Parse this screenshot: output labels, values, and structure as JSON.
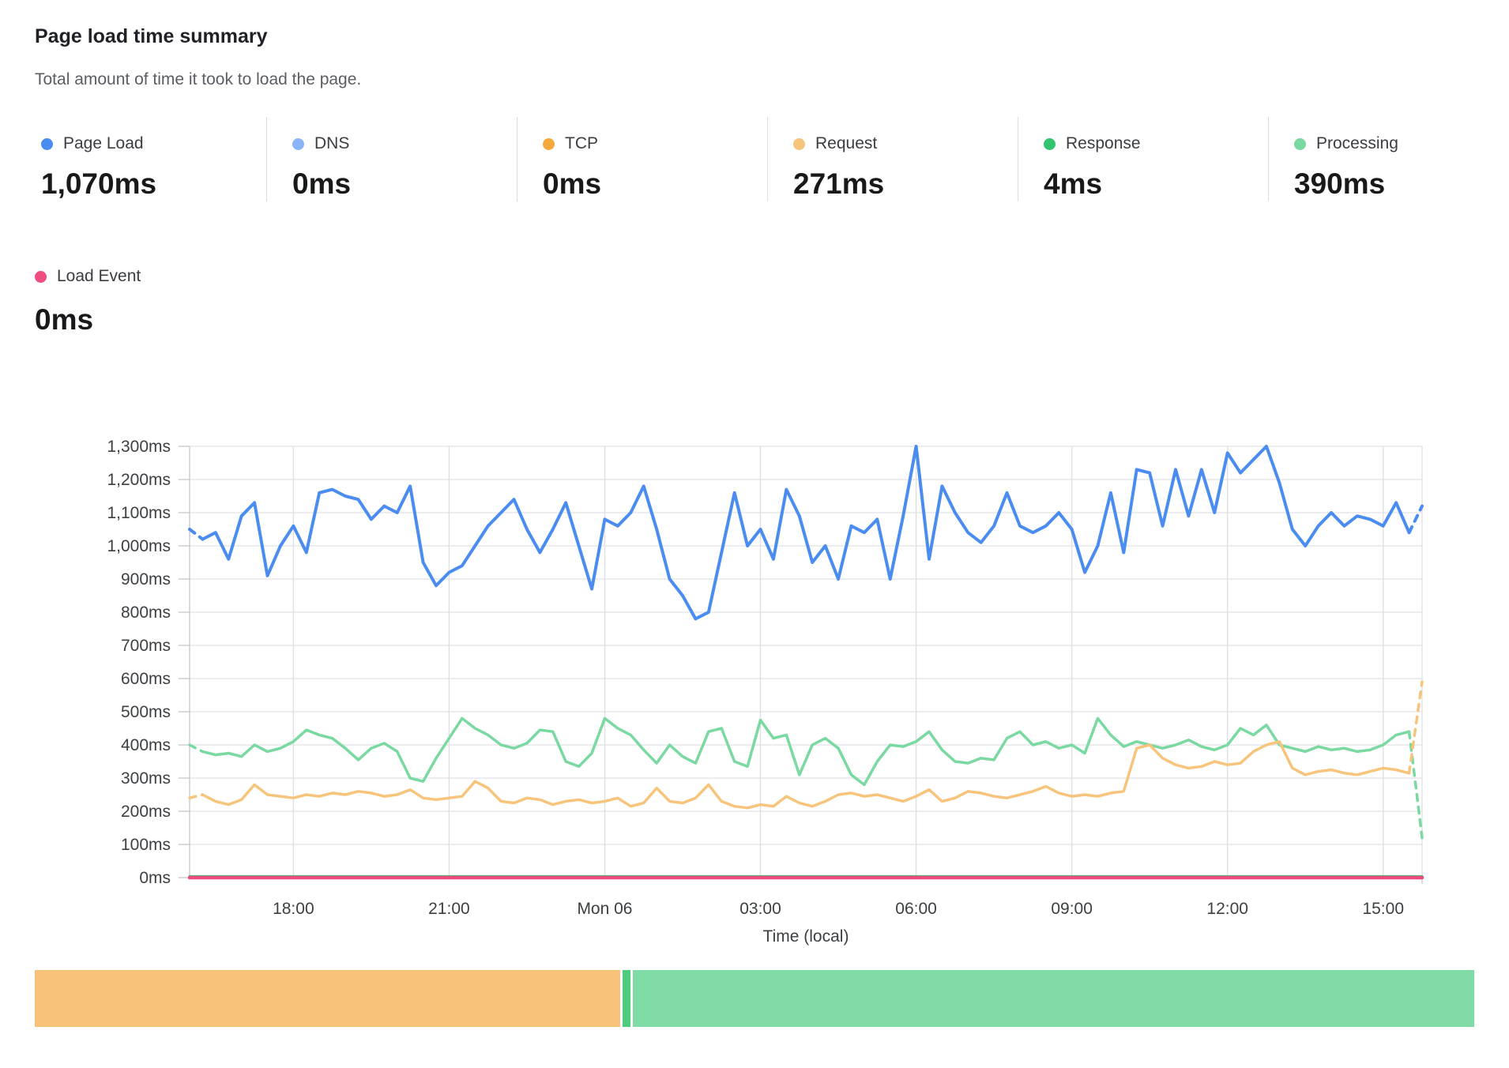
{
  "header": {
    "title": "Page load time summary",
    "subtitle": "Total amount of time it took to load the page."
  },
  "summary": [
    {
      "id": "page-load",
      "label": "Page Load",
      "value": "1,070ms",
      "color": "#4a8cf0"
    },
    {
      "id": "dns",
      "label": "DNS",
      "value": "0ms",
      "color": "#8ab4f8"
    },
    {
      "id": "tcp",
      "label": "TCP",
      "value": "0ms",
      "color": "#f5a93c"
    },
    {
      "id": "request",
      "label": "Request",
      "value": "271ms",
      "color": "#f7c47c"
    },
    {
      "id": "response",
      "label": "Response",
      "value": "4ms",
      "color": "#33c46f"
    },
    {
      "id": "processing",
      "label": "Processing",
      "value": "390ms",
      "color": "#79d9a1"
    }
  ],
  "summary_row2": {
    "id": "load-event",
    "label": "Load Event",
    "value": "0ms",
    "color": "#ee4d80"
  },
  "chart_data": {
    "type": "line",
    "xlabel": "Time (local)",
    "ylabel": "ms",
    "ylim": [
      0,
      1300
    ],
    "grid": true,
    "n_points": 96,
    "y_ticks": [
      {
        "v": 0,
        "label": "0ms"
      },
      {
        "v": 100,
        "label": "100ms"
      },
      {
        "v": 200,
        "label": "200ms"
      },
      {
        "v": 300,
        "label": "300ms"
      },
      {
        "v": 400,
        "label": "400ms"
      },
      {
        "v": 500,
        "label": "500ms"
      },
      {
        "v": 600,
        "label": "600ms"
      },
      {
        "v": 700,
        "label": "700ms"
      },
      {
        "v": 800,
        "label": "800ms"
      },
      {
        "v": 900,
        "label": "900ms"
      },
      {
        "v": 1000,
        "label": "1,000ms"
      },
      {
        "v": 1100,
        "label": "1,100ms"
      },
      {
        "v": 1200,
        "label": "1,200ms"
      },
      {
        "v": 1300,
        "label": "1,300ms"
      }
    ],
    "x_ticks": [
      {
        "i": 8,
        "label": "18:00"
      },
      {
        "i": 20,
        "label": "21:00"
      },
      {
        "i": 32,
        "label": "Mon 06"
      },
      {
        "i": 44,
        "label": "03:00"
      },
      {
        "i": 56,
        "label": "06:00"
      },
      {
        "i": 68,
        "label": "09:00"
      },
      {
        "i": 80,
        "label": "12:00"
      },
      {
        "i": 92,
        "label": "15:00"
      }
    ],
    "series": [
      {
        "name": "DNS",
        "color": "#8ab4f8",
        "width": 3,
        "const": 0
      },
      {
        "name": "TCP",
        "color": "#f5a93c",
        "width": 3,
        "const": 0
      },
      {
        "name": "Processing",
        "color": "#79d9a1",
        "width": 3.5,
        "edge_dash": true,
        "values": [
          400,
          380,
          370,
          375,
          365,
          400,
          380,
          390,
          410,
          445,
          430,
          420,
          390,
          355,
          390,
          405,
          380,
          300,
          290,
          360,
          420,
          480,
          450,
          430,
          400,
          390,
          405,
          445,
          440,
          350,
          335,
          375,
          480,
          450,
          430,
          385,
          345,
          400,
          365,
          345,
          440,
          450,
          350,
          335,
          475,
          420,
          430,
          310,
          400,
          420,
          390,
          310,
          280,
          350,
          400,
          395,
          410,
          440,
          385,
          350,
          345,
          360,
          355,
          420,
          440,
          400,
          410,
          390,
          400,
          375,
          480,
          430,
          395,
          410,
          400,
          390,
          400,
          415,
          395,
          385,
          400,
          450,
          430,
          460,
          400,
          390,
          380,
          395,
          385,
          390,
          380,
          385,
          400,
          430,
          440,
          120
        ]
      },
      {
        "name": "Request",
        "color": "#f7c47c",
        "width": 3.5,
        "edge_dash": true,
        "values": [
          240,
          250,
          230,
          220,
          235,
          280,
          250,
          245,
          240,
          250,
          245,
          255,
          250,
          260,
          255,
          245,
          250,
          265,
          240,
          235,
          240,
          245,
          290,
          270,
          230,
          225,
          240,
          235,
          220,
          230,
          235,
          225,
          230,
          240,
          215,
          225,
          270,
          230,
          225,
          240,
          280,
          230,
          215,
          210,
          220,
          215,
          245,
          225,
          215,
          230,
          250,
          255,
          245,
          250,
          240,
          230,
          245,
          265,
          230,
          240,
          260,
          255,
          245,
          240,
          250,
          260,
          275,
          255,
          245,
          250,
          245,
          255,
          260,
          390,
          400,
          360,
          340,
          330,
          335,
          350,
          340,
          345,
          380,
          400,
          410,
          330,
          310,
          320,
          325,
          315,
          310,
          320,
          330,
          325,
          315,
          590
        ]
      },
      {
        "name": "Page Load",
        "color": "#4a8cf0",
        "width": 4,
        "edge_dash": true,
        "values": [
          1050,
          1020,
          1040,
          960,
          1090,
          1130,
          910,
          1000,
          1060,
          980,
          1160,
          1170,
          1150,
          1140,
          1080,
          1120,
          1100,
          1180,
          950,
          880,
          920,
          940,
          1000,
          1060,
          1100,
          1140,
          1050,
          980,
          1050,
          1130,
          1000,
          870,
          1080,
          1060,
          1100,
          1180,
          1050,
          900,
          850,
          780,
          800,
          980,
          1160,
          1000,
          1050,
          960,
          1170,
          1090,
          950,
          1000,
          900,
          1060,
          1040,
          1080,
          900,
          1090,
          1300,
          960,
          1180,
          1100,
          1040,
          1010,
          1060,
          1160,
          1060,
          1040,
          1060,
          1100,
          1050,
          920,
          1000,
          1160,
          980,
          1230,
          1220,
          1060,
          1230,
          1090,
          1230,
          1100,
          1280,
          1220,
          1260,
          1300,
          1190,
          1050,
          1000,
          1060,
          1100,
          1060,
          1090,
          1080,
          1060,
          1130,
          1040,
          1120
        ]
      },
      {
        "name": "Response",
        "color": "#33c46f",
        "width": 3,
        "const": 4
      },
      {
        "name": "Load Event",
        "color": "#ed4b7e",
        "width": 4.5,
        "const": 0
      }
    ]
  },
  "stacked_bar": {
    "segments": [
      {
        "name": "request",
        "color": "#f8c379",
        "percent": 40.8
      },
      {
        "name": "response",
        "color": "#4fcb80",
        "percent": 0.55
      },
      {
        "name": "processing",
        "color": "#80dba6",
        "percent": 58.65
      }
    ]
  }
}
